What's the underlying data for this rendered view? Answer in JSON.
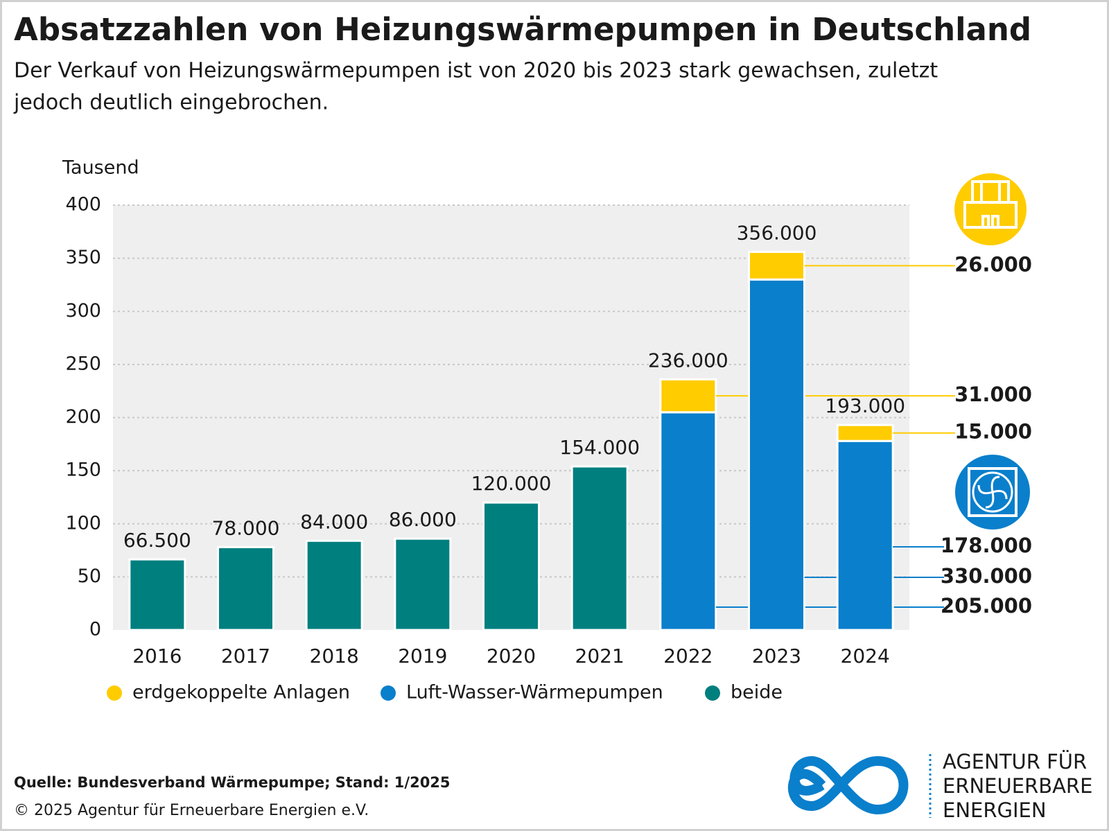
{
  "chart_data": {
    "type": "stacked_bar",
    "title": "Absatzzahlen von Heizungswärmepumpen in Deutschland",
    "subtitle": [
      "Der Verkauf von Heizungswärmepumpen ist von 2020 bis 2023 stark gewachsen, zuletzt",
      "jedoch deutlich eingebrochen."
    ],
    "y_axis_label": "Tausend",
    "categories": [
      "2016",
      "2017",
      "2018",
      "2019",
      "2020",
      "2021",
      "2022",
      "2023",
      "2024"
    ],
    "series": [
      {
        "name": "erdgekoppelte Anlagen",
        "color": "#ffcc00",
        "values": [
          null,
          null,
          null,
          null,
          null,
          null,
          31,
          26,
          15
        ],
        "value_labels": [
          null,
          null,
          null,
          null,
          null,
          null,
          "31.000",
          "26.000",
          "15.000"
        ]
      },
      {
        "name": "Luft-Wasser-Wärmepumpen",
        "color": "#0a7fcc",
        "values": [
          null,
          null,
          null,
          null,
          null,
          null,
          205,
          330,
          178
        ],
        "value_labels": [
          null,
          null,
          null,
          null,
          null,
          null,
          "205.000",
          "330.000",
          "178.000"
        ]
      },
      {
        "name": "beide",
        "color": "#007f7f",
        "values": [
          66.5,
          78,
          84,
          86,
          120,
          154,
          null,
          null,
          null
        ]
      }
    ],
    "totals": [
      66.5,
      78,
      84,
      86,
      120,
      154,
      236,
      356,
      193
    ],
    "total_labels": [
      "66.500",
      "78.000",
      "84.000",
      "86.000",
      "120.000",
      "154.000",
      "236.000",
      "356.000",
      "193.000"
    ],
    "ylim": [
      0,
      400
    ],
    "yticks": [
      0,
      50,
      100,
      150,
      200,
      250,
      300,
      350,
      400
    ],
    "grid": true,
    "source": "Quelle: Bundesverband Wärmepumpe; Stand: 1/2025",
    "copyright": "© 2025 Agentur für Erneuerbare Energien e.V.",
    "logo_text": [
      "AGENTUR FÜR",
      "ERNEUERBARE",
      "ENERGIEN"
    ]
  }
}
